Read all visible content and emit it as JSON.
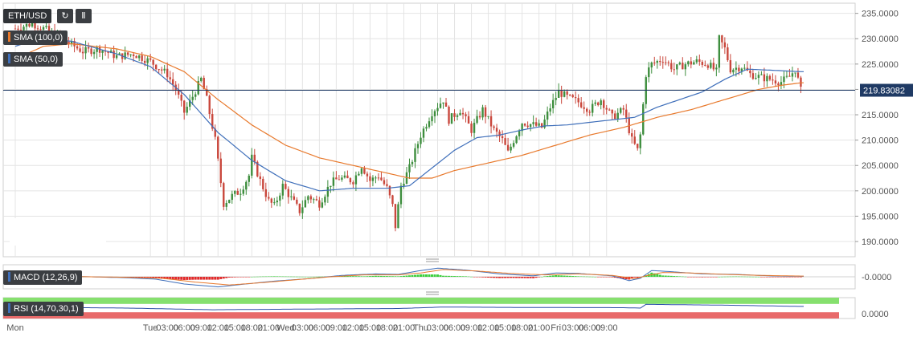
{
  "toolbar": {
    "symbol": "ETH/USD",
    "reload_icon": "reload-icon",
    "candles_icon": "candlestick-icon"
  },
  "legend": {
    "sma_slow": "SMA (100,0)",
    "sma_fast": "SMA (50,0)",
    "macd": "MACD (12,26,9)",
    "rsi": "RSI (14,70,30,1)"
  },
  "colors": {
    "up": "#3e8e3e",
    "down": "#c9473c",
    "sma_slow": "#e8792c",
    "sma_fast": "#3f6fba",
    "price_line": "#1f3a64",
    "rsi_over": "#86e06e",
    "rsi_under": "#e86a6a",
    "grid": "#e4e4e4",
    "panel_bg": "#f4f4f4"
  },
  "chart_data": {
    "type": "candlestick",
    "title": "",
    "xlabel": "",
    "ylabel": "",
    "ylim": [
      187,
      237
    ],
    "y_ticks": [
      "235.0000",
      "230.0000",
      "225.0000",
      "220.0000",
      "215.0000",
      "210.0000",
      "205.0000",
      "200.0000",
      "195.0000",
      "190.0000"
    ],
    "x_ticks": [
      "Mon",
      "Tue",
      "03:00",
      "06:00",
      "09:00",
      "12:00",
      "15:00",
      "18:00",
      "21:00",
      "Wed",
      "03:00",
      "06:00",
      "09:00",
      "12:00",
      "15:00",
      "18:00",
      "21:00",
      "Thu",
      "03:00",
      "06:00",
      "09:00",
      "12:00",
      "15:00",
      "18:00",
      "21:00",
      "Fri",
      "03:00",
      "06:00",
      "09:00"
    ],
    "last_price": "219.83082",
    "price_anchors": [
      [
        0,
        232
      ],
      [
        3,
        233
      ],
      [
        6,
        231.5
      ],
      [
        9,
        229.5
      ],
      [
        12,
        227.5
      ],
      [
        15,
        228
      ],
      [
        18,
        226.5
      ],
      [
        21,
        227
      ],
      [
        24,
        225.5
      ],
      [
        27,
        223
      ],
      [
        28.5,
        220
      ],
      [
        30,
        215.5
      ],
      [
        31,
        217.5
      ],
      [
        33,
        222
      ],
      [
        34,
        218
      ],
      [
        35.5,
        210
      ],
      [
        37,
        197.5
      ],
      [
        38.5,
        199
      ],
      [
        40,
        200
      ],
      [
        41.5,
        203
      ],
      [
        42,
        206.5
      ],
      [
        43.5,
        202
      ],
      [
        45,
        198
      ],
      [
        46,
        197
      ],
      [
        47.5,
        201
      ],
      [
        49,
        198.5
      ],
      [
        50.5,
        196
      ],
      [
        52,
        199
      ],
      [
        54,
        197.5
      ],
      [
        56,
        201.5
      ],
      [
        57.5,
        202.5
      ],
      [
        60,
        202
      ],
      [
        61.5,
        205
      ],
      [
        63,
        202
      ],
      [
        64.5,
        203
      ],
      [
        66,
        200.5
      ],
      [
        67,
        197
      ],
      [
        67.5,
        193
      ],
      [
        68.5,
        201
      ],
      [
        70,
        204.5
      ],
      [
        72,
        211
      ],
      [
        74,
        215.5
      ],
      [
        76,
        218
      ],
      [
        77,
        214
      ],
      [
        79,
        216
      ],
      [
        81,
        212
      ],
      [
        83,
        216
      ],
      [
        85,
        212
      ],
      [
        86.5,
        210
      ],
      [
        87.5,
        207.5
      ],
      [
        88.5,
        210
      ],
      [
        90,
        213.5
      ],
      [
        92,
        213
      ],
      [
        93.5,
        212.5
      ],
      [
        95,
        216.5
      ],
      [
        96.5,
        219.5
      ],
      [
        98,
        218.5
      ],
      [
        100,
        217.5
      ],
      [
        102,
        216
      ],
      [
        104,
        218
      ],
      [
        106,
        214.5
      ],
      [
        108,
        216
      ],
      [
        109.5,
        210
      ],
      [
        110.5,
        208
      ],
      [
        111,
        211
      ],
      [
        112,
        223
      ],
      [
        113,
        225
      ],
      [
        115,
        226
      ],
      [
        117,
        224
      ],
      [
        119,
        225
      ],
      [
        121,
        225.5
      ],
      [
        123,
        225
      ],
      [
        124.5,
        223.5
      ],
      [
        125,
        230
      ],
      [
        126,
        228
      ],
      [
        127,
        224
      ],
      [
        129,
        224.5
      ],
      [
        130.5,
        223
      ],
      [
        132,
        222.5
      ],
      [
        134,
        222
      ],
      [
        136,
        221.5
      ],
      [
        137.5,
        222.5
      ],
      [
        138.5,
        224
      ],
      [
        139.5,
        219.8
      ]
    ],
    "sma_slow_anchors": [
      [
        0,
        226
      ],
      [
        5,
        228.5
      ],
      [
        10,
        229
      ],
      [
        18,
        228
      ],
      [
        24,
        226.5
      ],
      [
        30,
        223.5
      ],
      [
        36,
        218
      ],
      [
        42,
        213
      ],
      [
        48,
        209
      ],
      [
        54,
        206.5
      ],
      [
        60,
        205
      ],
      [
        66,
        203.5
      ],
      [
        70,
        202.5
      ],
      [
        74,
        202.5
      ],
      [
        78,
        204
      ],
      [
        84,
        205.5
      ],
      [
        90,
        207
      ],
      [
        96,
        209
      ],
      [
        102,
        211
      ],
      [
        108,
        212.5
      ],
      [
        114,
        214.5
      ],
      [
        120,
        216
      ],
      [
        126,
        218
      ],
      [
        132,
        220
      ],
      [
        136,
        220.8
      ],
      [
        139.5,
        221.3
      ]
    ],
    "sma_fast_anchors": [
      [
        0,
        228.5
      ],
      [
        4,
        230
      ],
      [
        10,
        229.5
      ],
      [
        18,
        227
      ],
      [
        24,
        224.5
      ],
      [
        30,
        219
      ],
      [
        36,
        211.5
      ],
      [
        42,
        206
      ],
      [
        48,
        202
      ],
      [
        54,
        200
      ],
      [
        60,
        200.5
      ],
      [
        66,
        200.5
      ],
      [
        70,
        201
      ],
      [
        74,
        204.5
      ],
      [
        78,
        208
      ],
      [
        82,
        210.5
      ],
      [
        86,
        211
      ],
      [
        90,
        212
      ],
      [
        94,
        212.8
      ],
      [
        98,
        213
      ],
      [
        102,
        213.5
      ],
      [
        106,
        214
      ],
      [
        110,
        214.5
      ],
      [
        114,
        216.5
      ],
      [
        118,
        218
      ],
      [
        122,
        219.5
      ],
      [
        126,
        222
      ],
      [
        130,
        224
      ],
      [
        134,
        223.8
      ],
      [
        139.5,
        223.5
      ]
    ],
    "macd_anchors": [
      [
        0,
        0.0
      ],
      [
        10,
        0.1
      ],
      [
        20,
        -0.2
      ],
      [
        25,
        -0.5
      ],
      [
        30,
        -1.5
      ],
      [
        36,
        -2.1
      ],
      [
        40,
        -1.6
      ],
      [
        46,
        -0.9
      ],
      [
        52,
        -0.4
      ],
      [
        58,
        0.3
      ],
      [
        64,
        0.6
      ],
      [
        68,
        0.5
      ],
      [
        72,
        1.3
      ],
      [
        75,
        1.8
      ],
      [
        80,
        1.4
      ],
      [
        86,
        0.6
      ],
      [
        92,
        0.2
      ],
      [
        96,
        0.8
      ],
      [
        100,
        0.7
      ],
      [
        106,
        0.2
      ],
      [
        109,
        -0.8
      ],
      [
        111,
        -0.3
      ],
      [
        113,
        1.3
      ],
      [
        116,
        1.1
      ],
      [
        122,
        0.6
      ],
      [
        128,
        0.5
      ],
      [
        134,
        0.2
      ],
      [
        139.5,
        0.1
      ]
    ],
    "macd_signal_anchors": [
      [
        0,
        0.0
      ],
      [
        10,
        0.05
      ],
      [
        20,
        -0.1
      ],
      [
        26,
        -0.3
      ],
      [
        32,
        -1.1
      ],
      [
        38,
        -1.7
      ],
      [
        44,
        -1.2
      ],
      [
        50,
        -0.6
      ],
      [
        56,
        0.0
      ],
      [
        62,
        0.4
      ],
      [
        68,
        0.4
      ],
      [
        72,
        0.8
      ],
      [
        76,
        1.5
      ],
      [
        82,
        1.2
      ],
      [
        88,
        0.7
      ],
      [
        94,
        0.4
      ],
      [
        100,
        0.6
      ],
      [
        106,
        0.3
      ],
      [
        110,
        -0.4
      ],
      [
        112,
        0.2
      ],
      [
        115,
        0.9
      ],
      [
        120,
        0.8
      ],
      [
        126,
        0.5
      ],
      [
        132,
        0.3
      ],
      [
        139.5,
        0.15
      ]
    ],
    "macd_tick": "-0.0000",
    "rsi_tick": "0.0000",
    "rsi_anchors": [
      [
        0,
        55
      ],
      [
        20,
        50
      ],
      [
        35,
        42
      ],
      [
        50,
        45
      ],
      [
        68,
        48
      ],
      [
        76,
        55
      ],
      [
        90,
        53
      ],
      [
        108,
        52
      ],
      [
        111,
        50
      ],
      [
        112,
        68
      ],
      [
        126,
        64
      ],
      [
        139.5,
        58
      ]
    ]
  }
}
